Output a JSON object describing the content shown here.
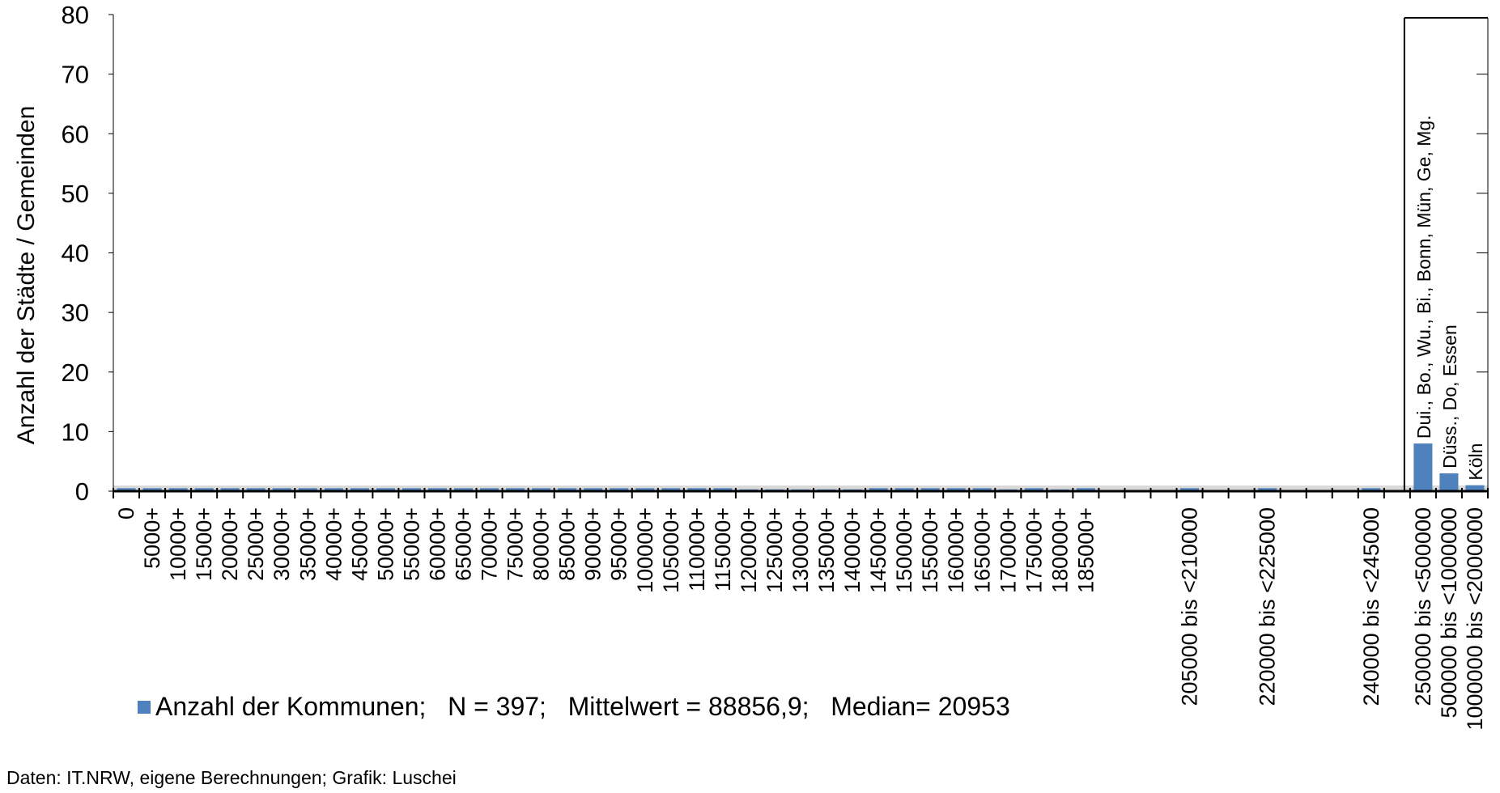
{
  "chart_data": {
    "type": "bar",
    "ylabel": "Anzahl der Städte  / Gemeinden",
    "ylim": [
      0,
      80
    ],
    "yticks": [
      0,
      10,
      20,
      30,
      40,
      50,
      60,
      70,
      80
    ],
    "categories": [
      "0",
      "5000+",
      "10000+",
      "15000+",
      "20000+",
      "25000+",
      "30000+",
      "35000+",
      "40000+",
      "45000+",
      "50000+",
      "55000+",
      "60000+",
      "65000+",
      "70000+",
      "75000+",
      "80000+",
      "85000+",
      "90000+",
      "95000+",
      "100000+",
      "105000+",
      "110000+",
      "115000+",
      "120000+",
      "125000+",
      "130000+",
      "135000+",
      "140000+",
      "145000+",
      "150000+",
      "155000+",
      "160000+",
      "165000+",
      "170000+",
      "175000+",
      "180000+",
      "185000+",
      "",
      "",
      "",
      "205000 bis <210000",
      "",
      "",
      "220000 bis <225000",
      "",
      "",
      "",
      "240000 bis <245000",
      "",
      "250000 bis <500000",
      "500000 bis <1000000",
      "1000000 bis <2000000"
    ],
    "series": [
      {
        "name": "Anzahl der Kommunen",
        "values": [
          0.5,
          0.5,
          0.5,
          0.5,
          0.5,
          0.5,
          0.5,
          0.5,
          0.5,
          0.5,
          0.5,
          0.5,
          0.5,
          0.5,
          0.5,
          0.5,
          0.5,
          0.5,
          0.5,
          0.5,
          0.5,
          0.5,
          0.5,
          0.5,
          0.3,
          0.3,
          0.3,
          0.3,
          0.3,
          0.5,
          0.5,
          0.5,
          0.5,
          0.5,
          0.3,
          0.5,
          0.3,
          0.5,
          0,
          0,
          0,
          0.5,
          0,
          0,
          0.5,
          0,
          0,
          0,
          0.5,
          0,
          8,
          3,
          1
        ],
        "color": "#4f81bd"
      }
    ],
    "data_labels": {
      "50": "Dui., Bo., Wu., Bi., Bonn, Mün, Ge, Mg.",
      "51": "Düss., Do, Essen",
      "52": "Köln"
    },
    "legend": {
      "position": "bottom-left",
      "text": "Anzahl der Kommunen;   N = 397;   Mittelwert = 88856,9;   Median= 20953"
    },
    "grid": false,
    "source": "Daten: IT.NRW, eigene Berechnungen; Grafik: Luschei"
  }
}
